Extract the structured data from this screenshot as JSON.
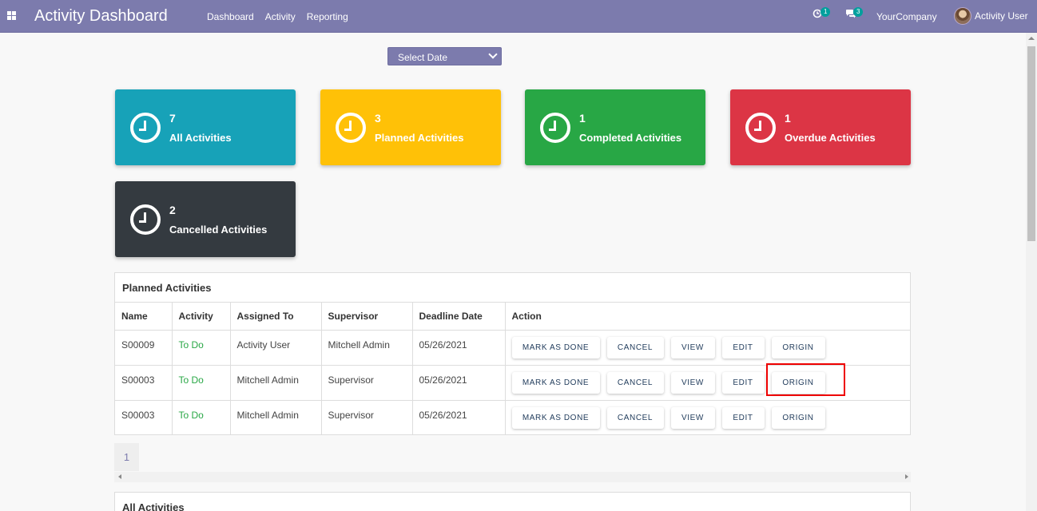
{
  "navbar": {
    "brand": "Activity Dashboard",
    "menu": [
      "Dashboard",
      "Activity",
      "Reporting"
    ],
    "activity_badge": "1",
    "messages_badge": "3",
    "company": "YourCompany",
    "user": "Activity User"
  },
  "filter": {
    "select_date": "Select Date"
  },
  "cards": [
    {
      "count": "7",
      "label": "All Activities",
      "color": "#17a2b8"
    },
    {
      "count": "3",
      "label": "Planned Activities",
      "color": "#ffc107"
    },
    {
      "count": "1",
      "label": "Completed Activities",
      "color": "#28a745"
    },
    {
      "count": "1",
      "label": "Overdue Activities",
      "color": "#dc3545"
    },
    {
      "count": "2",
      "label": "Cancelled Activities",
      "color": "#343a40"
    }
  ],
  "planned": {
    "title": "Planned Activities",
    "columns": [
      "Name",
      "Activity",
      "Assigned To",
      "Supervisor",
      "Deadline Date",
      "Action"
    ],
    "rows": [
      {
        "name": "S00009",
        "activity": "To Do",
        "assigned": "Activity User",
        "supervisor": "Mitchell Admin",
        "deadline": "05/26/2021"
      },
      {
        "name": "S00003",
        "activity": "To Do",
        "assigned": "Mitchell Admin",
        "supervisor": "Supervisor",
        "deadline": "05/26/2021"
      },
      {
        "name": "S00003",
        "activity": "To Do",
        "assigned": "Mitchell Admin",
        "supervisor": "Supervisor",
        "deadline": "05/26/2021"
      }
    ],
    "actions": {
      "done": "MARK AS DONE",
      "cancel": "CANCEL",
      "view": "VIEW",
      "edit": "EDIT",
      "origin": "ORIGIN"
    },
    "page": "1"
  },
  "all_activities": {
    "title": "All Activities"
  }
}
